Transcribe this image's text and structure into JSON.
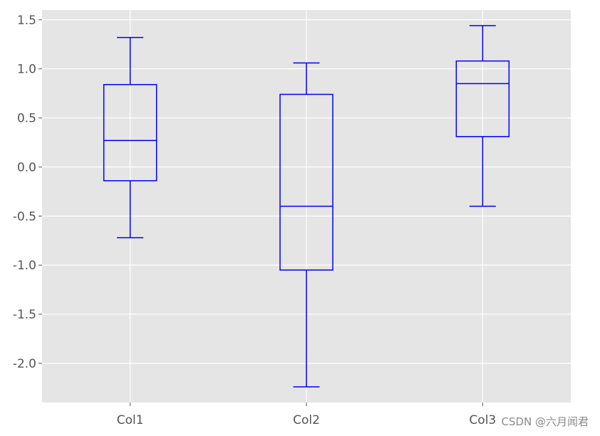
{
  "chart_data": {
    "type": "box",
    "categories": [
      "Col1",
      "Col2",
      "Col3"
    ],
    "boxes": [
      {
        "category": "Col1",
        "whisker_low": -0.72,
        "q1": -0.14,
        "median": 0.27,
        "q3": 0.84,
        "whisker_high": 1.32
      },
      {
        "category": "Col2",
        "whisker_low": -2.24,
        "q1": -1.05,
        "median": -0.4,
        "q3": 0.74,
        "whisker_high": 1.06
      },
      {
        "category": "Col3",
        "whisker_low": -0.4,
        "q1": 0.31,
        "median": 0.85,
        "q3": 1.08,
        "whisker_high": 1.44
      }
    ],
    "yticks": [
      1.5,
      1.0,
      0.5,
      0.0,
      -0.5,
      -1.0,
      -1.5,
      -2.0
    ],
    "ytick_labels": [
      "1.5",
      "1.0",
      "0.5",
      "0.0",
      "-0.5",
      "-1.0",
      "-1.5",
      "-2.0"
    ],
    "ylim": [
      -2.4,
      1.6
    ],
    "title": "",
    "xlabel": "",
    "ylabel": "",
    "grid": true,
    "colors": {
      "box": "#0000ff",
      "plot_background": "#e5e5e5",
      "grid": "#ffffff"
    }
  },
  "watermark": "CSDN @六月闻君"
}
